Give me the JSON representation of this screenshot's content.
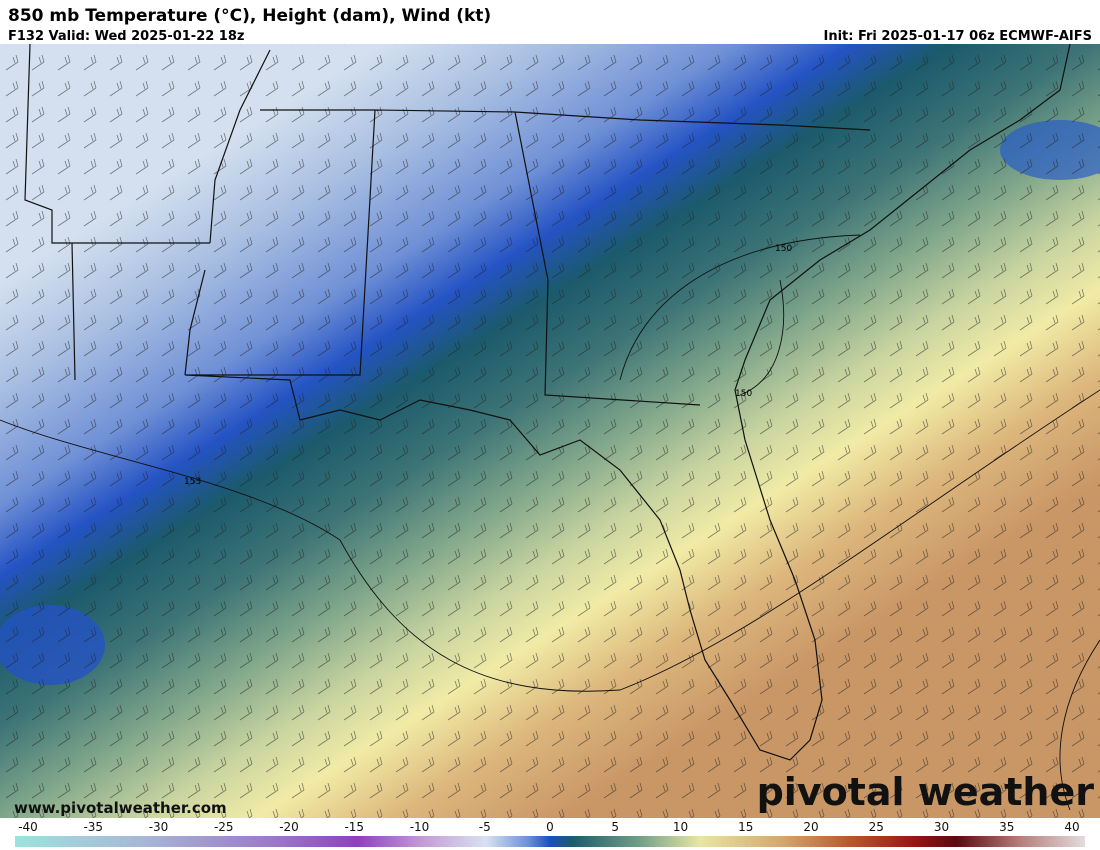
{
  "header": {
    "title": "850 mb Temperature (°C), Height (dam), Wind (kt)",
    "valid": "F132 Valid: Wed 2025-01-22 18z",
    "init": "Init: Fri 2025-01-17 06z ECMWF-AIFS"
  },
  "map": {
    "contour_labels": [
      "150",
      "150",
      "153"
    ]
  },
  "watermark": {
    "url": "www.pivotalweather.com",
    "logo": "pivotal weather"
  },
  "colorbar": {
    "labels": [
      -40,
      -35,
      -30,
      -25,
      -20,
      -15,
      -10,
      -5,
      0,
      5,
      10,
      15,
      20,
      25,
      30,
      35,
      40
    ]
  }
}
